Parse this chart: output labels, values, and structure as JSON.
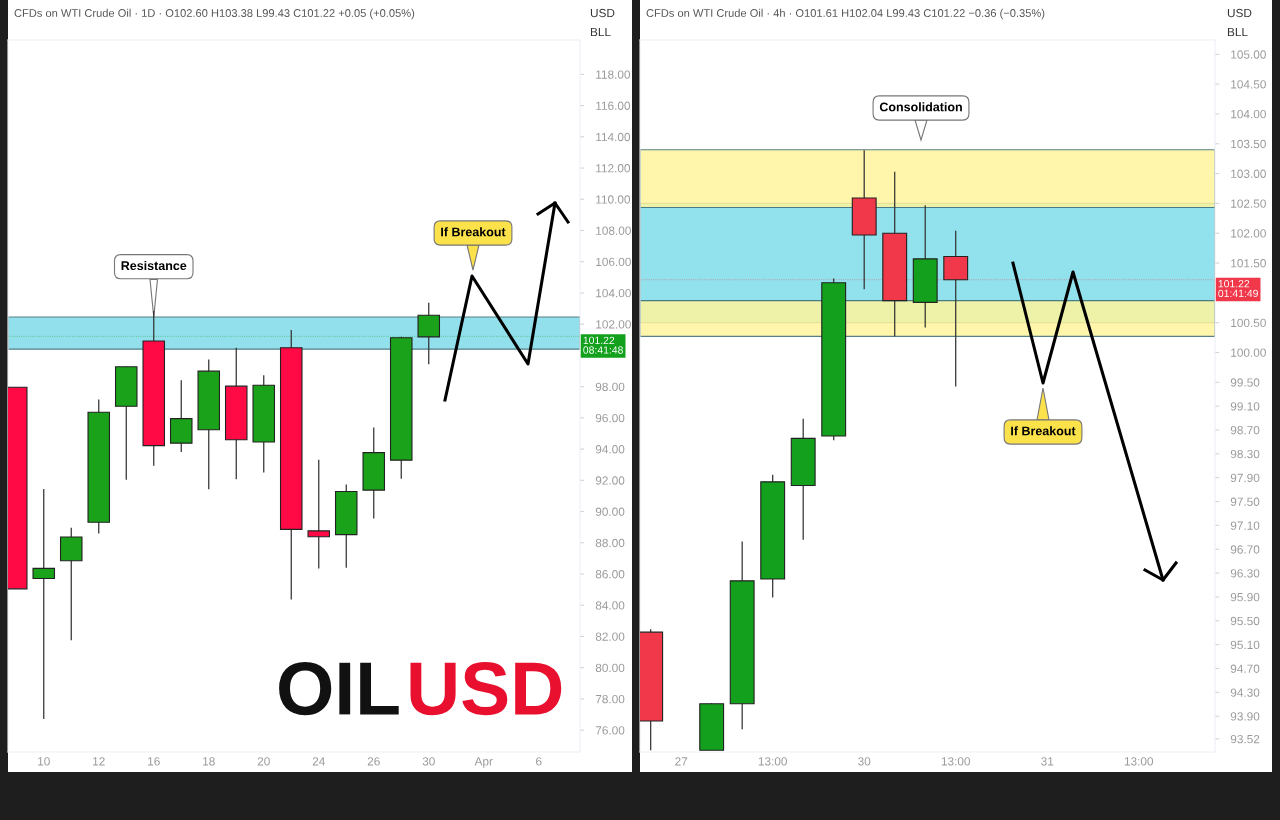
{
  "chart_data": [
    {
      "type": "candlestick",
      "title": "CFDs on WTI Crude Oil · 1D · O102.60 H103.38 L99.43 C101.22 +0.05 (+0.05%)",
      "categories": [
        null,
        "10",
        null,
        "12",
        null,
        "16",
        null,
        "18",
        null,
        "20",
        null,
        "24",
        null,
        "26",
        null,
        "30",
        null,
        "Apr",
        null,
        "6",
        null
      ],
      "ohlc": [
        [
          97.96,
          97.96,
          85.05,
          85.05
        ],
        [
          85.71,
          91.45,
          76.72,
          86.36
        ],
        [
          86.85,
          88.97,
          81.76,
          88.37
        ],
        [
          89.31,
          97.17,
          88.6,
          96.36
        ],
        [
          96.74,
          99.3,
          92.03,
          99.27
        ],
        [
          100.92,
          102.84,
          92.93,
          94.22
        ],
        [
          94.38,
          98.41,
          93.81,
          95.95
        ],
        [
          95.24,
          99.74,
          91.43,
          98.99
        ],
        [
          98.03,
          100.49,
          92.07,
          94.6
        ],
        [
          94.45,
          98.73,
          92.5,
          98.09
        ],
        [
          100.49,
          101.62,
          84.36,
          88.86
        ],
        [
          88.76,
          93.32,
          86.36,
          88.39
        ],
        [
          88.52,
          91.73,
          86.4,
          91.28
        ],
        [
          91.37,
          95.39,
          89.55,
          93.77
        ],
        [
          93.29,
          101.2,
          92.1,
          101.13
        ],
        [
          101.19,
          103.38,
          99.43,
          102.57
        ],
        null,
        null,
        null,
        null,
        null
      ],
      "colors": [
        "#ff0a45",
        "#1aa31a",
        "#1aa31a",
        "#1aa31a",
        "#1aa31a",
        "#ff0a45",
        "#1aa31a",
        "#1aa31a",
        "#ff0a45",
        "#1aa31a",
        "#ff0a45",
        "#ff0a45",
        "#1aa31a",
        "#1aa31a",
        "#1aa31a",
        "#1aa31a",
        null,
        null,
        null,
        null,
        null
      ],
      "ylim": [
        74.6,
        120.2
      ],
      "yticks": [
        {
          "value": 76,
          "label": "76.00"
        },
        {
          "value": 78,
          "label": "78.00"
        },
        {
          "value": 80,
          "label": "80.00"
        },
        {
          "value": 82,
          "label": "82.00"
        },
        {
          "value": 84,
          "label": "84.00"
        },
        {
          "value": 86,
          "label": "86.00"
        },
        {
          "value": 88,
          "label": "88.00"
        },
        {
          "value": 90,
          "label": "90.00"
        },
        {
          "value": 92,
          "label": "92.00"
        },
        {
          "value": 94,
          "label": "94.00"
        },
        {
          "value": 96,
          "label": "96.00"
        },
        {
          "value": 98,
          "label": "98.00"
        },
        {
          "value": 100,
          "label": null
        },
        {
          "value": 102,
          "label": "102.00"
        },
        {
          "value": 104,
          "label": "104.00"
        },
        {
          "value": 106,
          "label": "106.00"
        },
        {
          "value": 108,
          "label": "108.00"
        },
        {
          "value": 110,
          "label": "110.00"
        },
        {
          "value": 112,
          "label": "112.00"
        },
        {
          "value": 114,
          "label": "114.00"
        },
        {
          "value": 116,
          "label": "116.00"
        },
        {
          "value": 118,
          "label": "118.00"
        }
      ],
      "bands": [
        {
          "axis": "y",
          "from": 100.4,
          "to": 102.46,
          "color": "#7fdbe8"
        }
      ],
      "ref_lines": [
        {
          "axis": "y",
          "value": 101.22,
          "label": "101.22\n08:41:48",
          "color": "#13a11d"
        }
      ],
      "annotations": [
        {
          "text": "Resistance",
          "x": "16",
          "y": 102.46
        },
        "If Breakout",
        "OIL",
        "USD",
        "USD",
        "BLL"
      ]
    },
    {
      "type": "candlestick",
      "title": "CFDs on WTI Crude Oil · 4h · O101.61 H102.04 L99.43 C101.22 −0.36 (−0.35%)",
      "categories": [
        null,
        "27",
        null,
        null,
        "13:00",
        null,
        null,
        "30",
        null,
        null,
        "13:00",
        null,
        null,
        "31",
        null,
        null,
        "13:00",
        null,
        null
      ],
      "ohlc": [
        [
          95.31,
          95.36,
          93.33,
          93.82
        ],
        null,
        [
          93.33,
          94.12,
          93.33,
          94.11
        ],
        [
          94.11,
          96.83,
          93.68,
          96.17
        ],
        [
          96.2,
          97.95,
          95.89,
          97.83
        ],
        [
          97.77,
          98.89,
          96.86,
          98.56
        ],
        [
          98.6,
          101.24,
          98.53,
          101.17
        ],
        [
          102.59,
          103.39,
          101.06,
          101.97
        ],
        [
          102.0,
          103.03,
          100.27,
          100.87
        ],
        [
          100.84,
          102.47,
          100.42,
          101.57
        ],
        [
          101.61,
          102.04,
          99.43,
          101.22
        ],
        null,
        null,
        null,
        null,
        null,
        null,
        null,
        null
      ],
      "colors": [
        "#f0384a",
        null,
        "#13a11d",
        "#13a11d",
        "#13a11d",
        "#13a11d",
        "#13a11d",
        "#f0384a",
        "#f0384a",
        "#13a11d",
        "#f0384a",
        null,
        null,
        null,
        null,
        null,
        null,
        null,
        null
      ],
      "ylim": [
        93.3,
        105.24
      ],
      "yticks": [
        {
          "value": 93.52,
          "label": "93.52"
        },
        {
          "value": 93.9,
          "label": "93.90"
        },
        {
          "value": 94.3,
          "label": "94.30"
        },
        {
          "value": 94.7,
          "label": "94.70"
        },
        {
          "value": 95.1,
          "label": "95.10"
        },
        {
          "value": 95.5,
          "label": "95.50"
        },
        {
          "value": 95.9,
          "label": "95.90"
        },
        {
          "value": 96.3,
          "label": "96.30"
        },
        {
          "value": 96.7,
          "label": "96.70"
        },
        {
          "value": 97.1,
          "label": "97.10"
        },
        {
          "value": 97.5,
          "label": "97.50"
        },
        {
          "value": 97.9,
          "label": "97.90"
        },
        {
          "value": 98.3,
          "label": "98.30"
        },
        {
          "value": 98.7,
          "label": "98.70"
        },
        {
          "value": 99.1,
          "label": "99.10"
        },
        {
          "value": 99.5,
          "label": "99.50"
        },
        {
          "value": 100,
          "label": "100.00"
        },
        {
          "value": 100.5,
          "label": "100.50"
        },
        {
          "value": 101.5,
          "label": "101.50"
        },
        {
          "value": 102,
          "label": "102.00"
        },
        {
          "value": 102.5,
          "label": "102.50"
        },
        {
          "value": 103,
          "label": "103.00"
        },
        {
          "value": 103.5,
          "label": "103.50"
        },
        {
          "value": 104,
          "label": "104.00"
        },
        {
          "value": 104.5,
          "label": "104.50"
        },
        {
          "value": 105,
          "label": "105.00"
        }
      ],
      "bands": [
        {
          "axis": "y",
          "from": 100.5,
          "to": 102.5,
          "color": "#80deea"
        },
        {
          "axis": "y",
          "from": 102.43,
          "to": 103.4,
          "color": "#fff59d"
        },
        {
          "axis": "y",
          "from": 100.27,
          "to": 100.87,
          "color": "#fff59d"
        }
      ],
      "ref_lines": [
        {
          "axis": "y",
          "value": 101.22,
          "label": "101.22\n01:41:49",
          "color": "#f0384a"
        }
      ],
      "annotations": [
        "Consolidation",
        "If Breakout",
        "USD",
        "BLL"
      ]
    }
  ]
}
